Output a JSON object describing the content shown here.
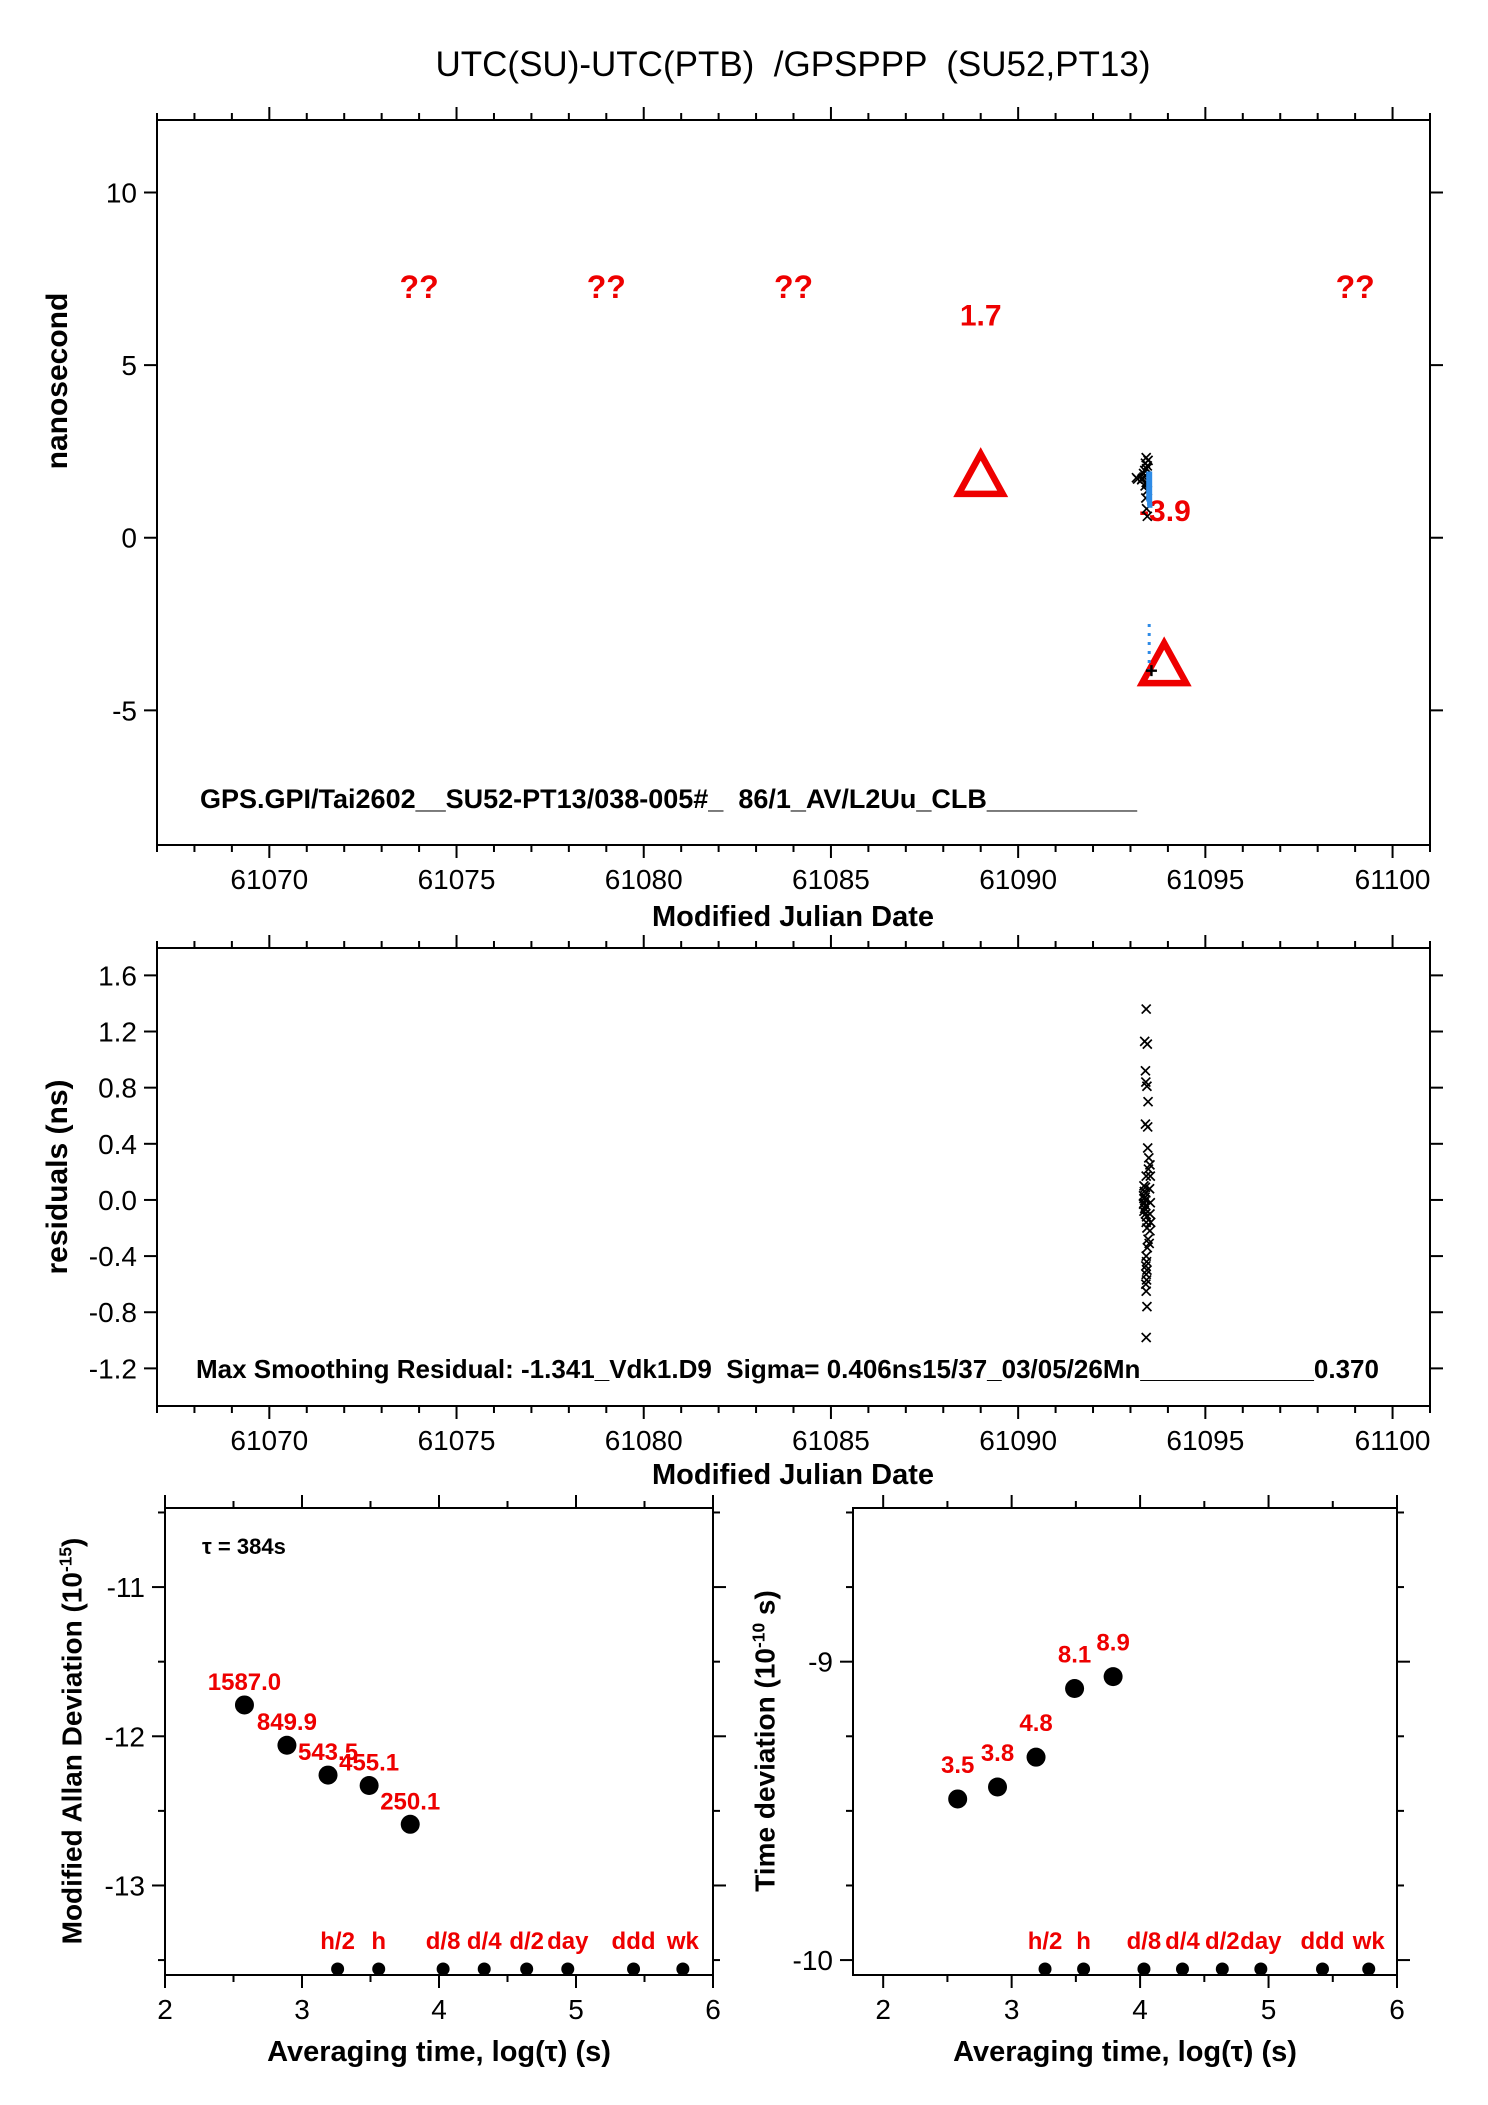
{
  "figure_title": "UTC(SU)-UTC(PTB)  /GPSPPP  (SU52,PT13)",
  "colors": {
    "red": "#ee0000",
    "blue": "#2e8be6",
    "black": "#000000",
    "background": "#ffffff"
  },
  "chart_data": [
    {
      "id": "p1",
      "type": "scatter",
      "title": "UTC(SU)-UTC(PTB)  /GPSPPP  (SU52,PT13)",
      "xlabel": "Modified Julian Date",
      "ylabel": "nanosecond",
      "xlim": [
        61067,
        61101
      ],
      "ylim": [
        -8.9,
        12.1
      ],
      "xticks": {
        "major": [
          61070,
          61075,
          61080,
          61085,
          61090,
          61095,
          61100
        ],
        "minor_step": 1
      },
      "yticks": {
        "major": [
          -5,
          0,
          5,
          10
        ],
        "labels": [
          "-5",
          "0",
          "5",
          "10"
        ]
      },
      "annotation": "GPS.GPI/Tai2602__SU52-PT13/038-005#_  86/1_AV/L2Uu_CLB__________",
      "question_marks": {
        "text": "??",
        "points": [
          [
            61074,
            7.27
          ],
          [
            61079,
            7.27
          ],
          [
            61084,
            7.27
          ],
          [
            61099,
            7.27
          ]
        ]
      },
      "value_labels": [
        {
          "text": "1.7",
          "x": 61089,
          "y": 6.46
        },
        {
          "text": "-3.9",
          "x": 61093.92,
          "y": 0.81
        }
      ],
      "series": [
        {
          "name": "steer-triangles",
          "marker": "triangle-open",
          "color": "red",
          "points": [
            [
              61089,
              1.82
            ],
            [
              61093.9,
              -3.66
            ]
          ]
        },
        {
          "name": "ppp-points-x",
          "marker": "x",
          "color": "black",
          "points": [
            [
              61093.42,
              2.32
            ],
            [
              61093.47,
              2.24
            ],
            [
              61093.4,
              2.16
            ],
            [
              61093.45,
              2.08
            ],
            [
              61093.43,
              2.0
            ],
            [
              61093.38,
              1.95
            ],
            [
              61093.35,
              1.86
            ],
            [
              61093.4,
              1.8
            ],
            [
              61093.36,
              1.76
            ],
            [
              61093.32,
              1.72
            ],
            [
              61093.16,
              1.74
            ],
            [
              61093.19,
              1.7
            ],
            [
              61093.3,
              1.68
            ],
            [
              61093.42,
              1.6
            ],
            [
              61093.39,
              1.5
            ],
            [
              61093.45,
              1.36
            ],
            [
              61093.41,
              1.15
            ],
            [
              61093.43,
              0.84
            ],
            [
              61093.45,
              0.62
            ]
          ]
        },
        {
          "name": "smoothed-segment",
          "marker": "vline",
          "color": "blue",
          "x": 61093.5,
          "from": 1.05,
          "to": 1.92
        },
        {
          "name": "smoothed-dots",
          "marker": "square",
          "color": "blue",
          "points": [
            [
              61093.51,
              1.0
            ],
            [
              61093.52,
              0.94
            ]
          ]
        },
        {
          "name": "steer-dotted-segment",
          "marker": "vline-dotted",
          "color": "blue",
          "x": 61093.5,
          "from": -2.5,
          "to": -3.88
        },
        {
          "name": "plus-point",
          "marker": "plus",
          "color": "black",
          "points": [
            [
              61093.56,
              -3.85
            ]
          ]
        }
      ]
    },
    {
      "id": "p2",
      "type": "scatter",
      "xlabel": "Modified Julian Date",
      "ylabel": "residuals (ns)",
      "xlim": [
        61067,
        61101
      ],
      "ylim": [
        -1.468,
        1.795
      ],
      "xticks": {
        "major": [
          61070,
          61075,
          61080,
          61085,
          61090,
          61095,
          61100
        ],
        "minor_step": 1
      },
      "yticks": {
        "major": [
          -1.2,
          -0.8,
          -0.4,
          0,
          0.4,
          0.8,
          1.2,
          1.6
        ],
        "labels": [
          "-1.2",
          "-0.8",
          "-0.4",
          "0.0",
          "0.4",
          "0.8",
          "1.2",
          "1.6"
        ]
      },
      "annotation": "Max Smoothing Residual: -1.341_Vdk1.D9  Sigma= 0.406ns15/37_03/05/26Mn____________0.370",
      "series": [
        {
          "name": "residuals-x",
          "marker": "x",
          "color": "black",
          "points": [
            [
              61093.42,
              1.36
            ],
            [
              61093.38,
              1.13
            ],
            [
              61093.45,
              1.11
            ],
            [
              61093.4,
              0.92
            ],
            [
              61093.41,
              0.84
            ],
            [
              61093.44,
              0.81
            ],
            [
              61093.47,
              0.7
            ],
            [
              61093.4,
              0.54
            ],
            [
              61093.46,
              0.52
            ],
            [
              61093.46,
              0.37
            ],
            [
              61093.49,
              0.3
            ],
            [
              61093.48,
              0.22
            ],
            [
              61093.42,
              0.17
            ],
            [
              61093.36,
              0.1
            ],
            [
              61093.4,
              0.09
            ],
            [
              61093.37,
              0.06
            ],
            [
              61093.41,
              0.05
            ],
            [
              61093.35,
              0.03
            ],
            [
              61093.39,
              0.02
            ],
            [
              61093.36,
              0.01
            ],
            [
              61093.4,
              0.0
            ],
            [
              61093.37,
              -0.02
            ],
            [
              61093.35,
              -0.03
            ],
            [
              61093.41,
              -0.04
            ],
            [
              61093.38,
              -0.06
            ],
            [
              61093.36,
              -0.08
            ],
            [
              61093.4,
              -0.1
            ],
            [
              61093.43,
              -0.12
            ],
            [
              61093.52,
              0.25
            ],
            [
              61093.53,
              0.17
            ],
            [
              61093.51,
              0.08
            ],
            [
              61093.53,
              -0.02
            ],
            [
              61093.52,
              -0.1
            ],
            [
              61093.54,
              -0.16
            ],
            [
              61093.52,
              -0.22
            ],
            [
              61093.42,
              -0.16
            ],
            [
              61093.44,
              -0.2
            ],
            [
              61093.47,
              -0.28
            ],
            [
              61093.5,
              -0.31
            ],
            [
              61093.45,
              -0.34
            ],
            [
              61093.42,
              -0.4
            ],
            [
              61093.43,
              -0.44
            ],
            [
              61093.41,
              -0.47
            ],
            [
              61093.44,
              -0.5
            ],
            [
              61093.42,
              -0.53
            ],
            [
              61093.43,
              -0.57
            ],
            [
              61093.41,
              -0.6
            ],
            [
              61093.42,
              -0.65
            ],
            [
              61093.44,
              -0.76
            ],
            [
              61093.42,
              -0.98
            ]
          ]
        }
      ]
    },
    {
      "id": "p3",
      "type": "scatter",
      "xlabel": "Averaging time, log(τ) (s)",
      "ylabel_parts": {
        "prefix": "Modified Allan Deviation (10",
        "sup": "-15",
        "suffix": ")"
      },
      "tau_annotation": "τ = 384s",
      "xlim": [
        2,
        6
      ],
      "ylim": [
        -13.6,
        -10.47
      ],
      "xticks": {
        "major": [
          2,
          3,
          4,
          5,
          6
        ],
        "minor_step": 0.5
      },
      "yticks": {
        "major": [
          -11,
          -12,
          -13
        ],
        "labels": [
          "-11",
          "-12",
          "-13"
        ],
        "minor_step": 0.5
      },
      "points": {
        "x": [
          2.58,
          2.89,
          3.19,
          3.49,
          3.79
        ],
        "y": [
          -11.79,
          -12.06,
          -12.26,
          -12.33,
          -12.59
        ],
        "labels": [
          "1587.0",
          "849.9",
          "543.5",
          "455.1",
          "250.1"
        ]
      },
      "time_markers": {
        "labels": [
          "h/2",
          "h",
          "d/8",
          "d/4",
          "d/2",
          "day",
          "ddd",
          "wk"
        ],
        "log_tau": [
          3.26,
          3.56,
          4.03,
          4.33,
          4.64,
          4.94,
          5.42,
          5.78
        ]
      }
    },
    {
      "id": "p4",
      "type": "scatter",
      "xlabel": "Averaging time, log(τ) (s)",
      "ylabel_parts": {
        "prefix": "Time deviation (10",
        "sup": "-10",
        "suffix": " s)"
      },
      "xlim": [
        1.765,
        6.0
      ],
      "ylim": [
        -10.05,
        -8.485
      ],
      "xticks": {
        "major": [
          2,
          3,
          4,
          5,
          6
        ],
        "minor_step": 0.5
      },
      "yticks": {
        "major": [
          -9,
          -10
        ],
        "labels": [
          "-9",
          "-10"
        ],
        "minor_step": 0.25
      },
      "points": {
        "x": [
          2.58,
          2.89,
          3.19,
          3.49,
          3.79
        ],
        "y": [
          -9.46,
          -9.42,
          -9.32,
          -9.09,
          -9.05
        ],
        "labels": [
          "3.5",
          "3.8",
          "4.8",
          "8.1",
          "8.9"
        ]
      },
      "time_markers": {
        "labels": [
          "h/2",
          "h",
          "d/8",
          "d/4",
          "d/2",
          "day",
          "ddd",
          "wk"
        ],
        "log_tau": [
          3.26,
          3.56,
          4.03,
          4.33,
          4.64,
          4.94,
          5.42,
          5.78
        ]
      }
    }
  ]
}
